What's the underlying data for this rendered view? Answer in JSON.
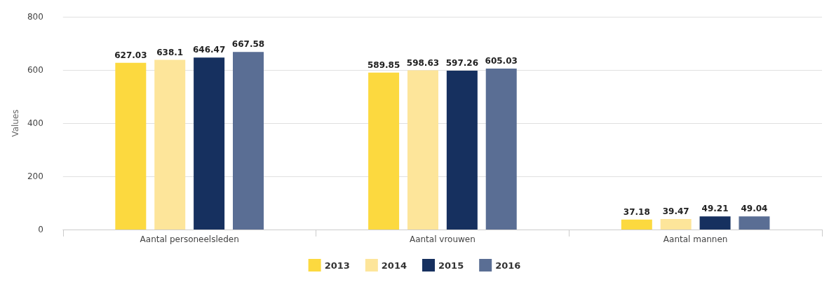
{
  "chart_data": {
    "type": "bar",
    "ylabel": "Values",
    "categories": [
      "Aantal personeelsleden",
      "Aantal vrouwen",
      "Aantal mannen"
    ],
    "series": [
      {
        "name": "2013",
        "color": "#fcd93f",
        "values": [
          627.03,
          589.85,
          37.18
        ]
      },
      {
        "name": "2014",
        "color": "#fde59a",
        "values": [
          638.1,
          598.63,
          39.47
        ]
      },
      {
        "name": "2015",
        "color": "#16305f",
        "values": [
          646.47,
          597.26,
          49.21
        ]
      },
      {
        "name": "2016",
        "color": "#5a6e94",
        "values": [
          667.58,
          605.03,
          49.04
        ]
      }
    ],
    "ylim": [
      0,
      800
    ],
    "yticks": [
      0,
      200,
      400,
      600,
      800
    ],
    "grid": "y",
    "legend": "bottom",
    "data_labels": true
  }
}
